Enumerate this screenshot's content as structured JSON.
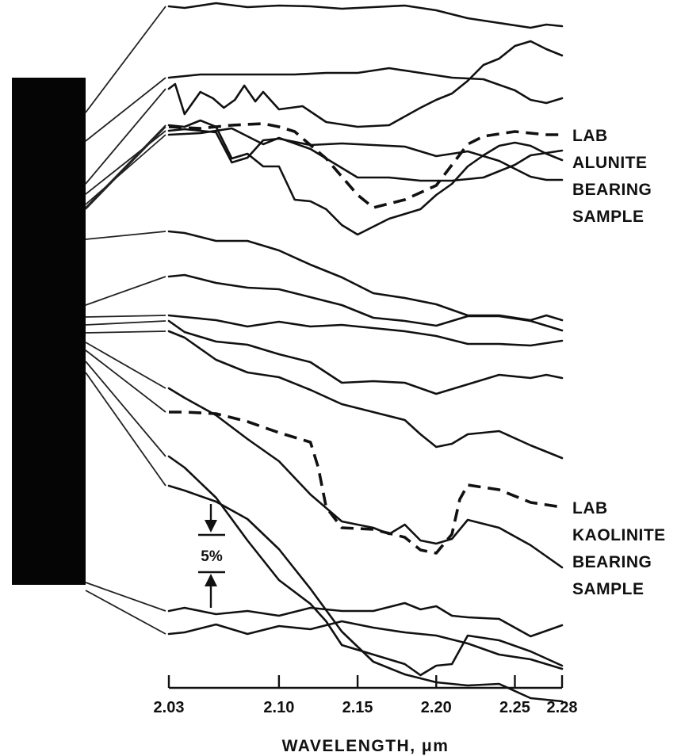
{
  "chart_data": {
    "type": "line",
    "xlabel": "WAVELENGTH, μm",
    "x_ticks": [
      "2.03",
      "2.10",
      "2.15",
      "2.20",
      "2.25",
      "2.28"
    ],
    "xlim": [
      2.03,
      2.28
    ],
    "scale_bar_label": "5%",
    "series": [
      {
        "x": [
          2.03,
          2.04,
          2.06,
          2.08,
          2.1,
          2.12,
          2.14,
          2.16,
          2.18,
          2.2,
          2.22,
          2.24,
          2.26,
          2.27,
          2.28
        ],
        "y": [
          13,
          11,
          17,
          12,
          14,
          13,
          10,
          12,
          14,
          8,
          -2,
          -8,
          -14,
          -10,
          -12
        ],
        "dashed": false
      },
      {
        "x": [
          2.03,
          2.05,
          2.08,
          2.11,
          2.13,
          2.15,
          2.17,
          2.19,
          2.21,
          2.23,
          2.25,
          2.26,
          2.27,
          2.28
        ],
        "y": [
          66,
          70,
          70,
          70,
          72,
          72,
          78,
          72,
          66,
          64,
          50,
          38,
          34,
          40
        ],
        "dashed": false
      },
      {
        "x": [
          2.03,
          2.034,
          2.04,
          2.05,
          2.058,
          2.065,
          2.072,
          2.078,
          2.085,
          2.09,
          2.1,
          2.115,
          2.13,
          2.15,
          2.17,
          2.19,
          2.2,
          2.21,
          2.22,
          2.23,
          2.24,
          2.25,
          2.26,
          2.27,
          2.28
        ],
        "y": [
          112,
          118,
          80,
          108,
          100,
          88,
          98,
          116,
          96,
          108,
          86,
          90,
          70,
          64,
          66,
          88,
          98,
          106,
          122,
          142,
          150,
          166,
          172,
          162,
          154
        ],
        "dashed": false
      },
      {
        "x": [
          2.03,
          2.04,
          2.05,
          2.06,
          2.07,
          2.08,
          2.09,
          2.1,
          2.12,
          2.14,
          2.16,
          2.18,
          2.2,
          2.22,
          2.24,
          2.26,
          2.27,
          2.28
        ],
        "y": [
          158,
          160,
          158,
          156,
          118,
          124,
          146,
          148,
          140,
          142,
          140,
          138,
          126,
          132,
          120,
          100,
          96,
          96
        ],
        "dashed": false
      },
      {
        "x": [
          2.03,
          2.05,
          2.07,
          2.09,
          2.1,
          2.12,
          2.15,
          2.17,
          2.19,
          2.21,
          2.23,
          2.25,
          2.26,
          2.28
        ],
        "y": [
          164,
          166,
          172,
          152,
          160,
          146,
          110,
          110,
          106,
          106,
          110,
          126,
          138,
          144
        ],
        "dashed": false
      },
      {
        "x": [
          2.03,
          2.04,
          2.05,
          2.06,
          2.07,
          2.08,
          2.09,
          2.1,
          2.11,
          2.12,
          2.13,
          2.14,
          2.15,
          2.16,
          2.17,
          2.18,
          2.19,
          2.2,
          2.21,
          2.22,
          2.23,
          2.24,
          2.25,
          2.26,
          2.27,
          2.28
        ],
        "y": [
          198,
          196,
          204,
          196,
          156,
          162,
          146,
          146,
          104,
          102,
          92,
          72,
          60,
          70,
          80,
          86,
          92,
          110,
          124,
          146,
          160,
          172,
          176,
          172,
          162,
          154
        ],
        "dashed": false
      },
      {
        "x": [
          2.03,
          2.05,
          2.07,
          2.09,
          2.1,
          2.11,
          2.13,
          2.15,
          2.16,
          2.18,
          2.2,
          2.22,
          2.23,
          2.25,
          2.27,
          2.28
        ],
        "y": [
          212,
          210,
          214,
          216,
          212,
          206,
          172,
          126,
          110,
          120,
          138,
          190,
          200,
          206,
          202,
          202
        ],
        "dashed": true
      },
      {
        "x": [
          2.03,
          2.04,
          2.06,
          2.08,
          2.1,
          2.12,
          2.14,
          2.16,
          2.18,
          2.2,
          2.22,
          2.24,
          2.26,
          2.27,
          2.28
        ],
        "y": [
          256,
          254,
          244,
          244,
          232,
          214,
          198,
          178,
          172,
          164,
          150,
          150,
          144,
          150,
          144
        ],
        "dashed": false
      },
      {
        "x": [
          2.03,
          2.04,
          2.06,
          2.08,
          2.1,
          2.12,
          2.14,
          2.16,
          2.18,
          2.2,
          2.22,
          2.24,
          2.26,
          2.28
        ],
        "y": [
          286,
          288,
          278,
          272,
          270,
          260,
          250,
          234,
          230,
          224,
          236,
          236,
          230,
          218
        ],
        "dashed": false
      },
      {
        "x": [
          2.03,
          2.04,
          2.06,
          2.08,
          2.1,
          2.12,
          2.14,
          2.16,
          2.18,
          2.2,
          2.22,
          2.24,
          2.26,
          2.28
        ],
        "y": [
          306,
          304,
          300,
          292,
          298,
          292,
          294,
          290,
          286,
          280,
          270,
          270,
          268,
          274
        ],
        "dashed": false
      },
      {
        "x": [
          2.03,
          2.04,
          2.06,
          2.08,
          2.1,
          2.12,
          2.14,
          2.16,
          2.18,
          2.2,
          2.22,
          2.24,
          2.26,
          2.27,
          2.28
        ],
        "y": [
          312,
          298,
          286,
          282,
          270,
          260,
          234,
          236,
          234,
          220,
          232,
          244,
          240,
          244,
          240
        ],
        "dashed": false
      },
      {
        "x": [
          2.03,
          2.04,
          2.06,
          2.08,
          2.1,
          2.12,
          2.14,
          2.16,
          2.18,
          2.19,
          2.2,
          2.21,
          2.22,
          2.24,
          2.26,
          2.28
        ],
        "y": [
          324,
          316,
          288,
          272,
          266,
          250,
          232,
          222,
          212,
          194,
          178,
          182,
          194,
          198,
          180,
          164
        ],
        "dashed": false
      },
      {
        "x": [
          2.03,
          2.04,
          2.06,
          2.08,
          2.1,
          2.12,
          2.14,
          2.16,
          2.17,
          2.18,
          2.19,
          2.2,
          2.21,
          2.22,
          2.24,
          2.26,
          2.28
        ],
        "y": [
          340,
          328,
          306,
          276,
          248,
          206,
          172,
          164,
          156,
          168,
          148,
          144,
          150,
          174,
          164,
          142,
          114
        ],
        "dashed": false
      },
      {
        "x": [
          2.03,
          2.04,
          2.06,
          2.08,
          2.1,
          2.12,
          2.125,
          2.13,
          2.14,
          2.16,
          2.18,
          2.19,
          2.2,
          2.21,
          2.215,
          2.22,
          2.24,
          2.26,
          2.28
        ],
        "y": [
          250,
          250,
          248,
          238,
          224,
          212,
          180,
          130,
          104,
          102,
          92,
          76,
          72,
          96,
          140,
          158,
          152,
          136,
          130
        ],
        "dashed": true
      },
      {
        "x": [
          2.03,
          2.04,
          2.06,
          2.08,
          2.1,
          2.12,
          2.13,
          2.14,
          2.16,
          2.18,
          2.19,
          2.2,
          2.21,
          2.22,
          2.24,
          2.26,
          2.28
        ],
        "y": [
          372,
          358,
          320,
          266,
          216,
          186,
          164,
          134,
          122,
          110,
          96,
          108,
          110,
          146,
          140,
          126,
          108
        ],
        "dashed": false
      },
      {
        "x": [
          2.03,
          2.04,
          2.06,
          2.08,
          2.1,
          2.12,
          2.14,
          2.16,
          2.18,
          2.2,
          2.22,
          2.24,
          2.26,
          2.28
        ],
        "y": [
          398,
          392,
          378,
          356,
          318,
          268,
          214,
          176,
          160,
          150,
          146,
          148,
          130,
          126
        ],
        "dashed": false
      },
      {
        "x": [
          2.03,
          2.04,
          2.06,
          2.08,
          2.1,
          2.12,
          2.14,
          2.16,
          2.18,
          2.19,
          2.2,
          2.21,
          2.22,
          2.24,
          2.26,
          2.28
        ],
        "y": [
          106,
          110,
          102,
          106,
          100,
          110,
          106,
          106,
          116,
          108,
          112,
          100,
          98,
          96,
          74,
          88
        ],
        "dashed": false
      },
      {
        "x": [
          2.03,
          2.04,
          2.06,
          2.08,
          2.1,
          2.12,
          2.14,
          2.16,
          2.18,
          2.2,
          2.22,
          2.24,
          2.26,
          2.28
        ],
        "y": [
          68,
          70,
          80,
          68,
          78,
          74,
          84,
          76,
          70,
          66,
          56,
          42,
          36,
          24
        ],
        "dashed": false
      }
    ],
    "annotations": [
      {
        "text": [
          "LAB",
          "ALUNITE",
          "BEARING",
          "SAMPLE"
        ],
        "series_index": 6
      },
      {
        "text": [
          "LAB",
          "KAOLINITE",
          "BEARING",
          "SAMPLE"
        ],
        "series_index": 13
      }
    ]
  }
}
